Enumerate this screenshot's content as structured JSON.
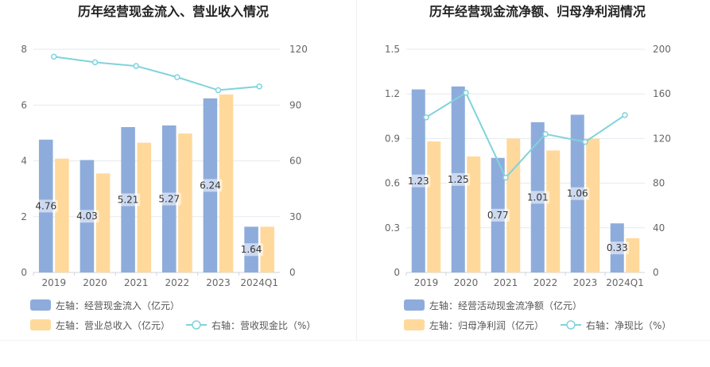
{
  "colors": {
    "bar_primary": "#8eacdb",
    "bar_secondary": "#ffd99b",
    "line": "#7fd3dc",
    "grid": "#e6e9f0",
    "axis_text": "#666666",
    "title_text": "#222222",
    "legend_text": "#555555"
  },
  "chart_data": [
    {
      "type": "bar",
      "title": "历年经营现金流入、营业收入情况",
      "categories": [
        "2019",
        "2020",
        "2021",
        "2022",
        "2023",
        "2024Q1"
      ],
      "left_axis": {
        "ylim": [
          0,
          8
        ],
        "ticks": [
          "0",
          "2",
          "4",
          "6",
          "8"
        ]
      },
      "right_axis": {
        "ylim": [
          0,
          120
        ],
        "ticks": [
          "0",
          "30",
          "60",
          "90",
          "120"
        ]
      },
      "series": [
        {
          "name": "左轴：经营现金流入（亿元）",
          "kind": "bar",
          "axis": "left",
          "values": [
            4.76,
            4.03,
            5.21,
            5.27,
            6.24,
            1.64
          ],
          "labels": [
            "4.76",
            "4.03",
            "5.21",
            "5.27",
            "6.24",
            "1.64"
          ]
        },
        {
          "name": "左轴：营业总收入（亿元）",
          "kind": "bar",
          "axis": "left",
          "values": [
            4.08,
            3.55,
            4.65,
            4.98,
            6.38,
            1.64
          ]
        },
        {
          "name": "右轴：营收现金比（%）",
          "kind": "line",
          "axis": "right",
          "values": [
            116,
            113,
            111,
            105,
            98,
            100
          ]
        }
      ]
    },
    {
      "type": "bar",
      "title": "历年经营现金流净额、归母净利润情况",
      "categories": [
        "2019",
        "2020",
        "2021",
        "2022",
        "2023",
        "2024Q1"
      ],
      "left_axis": {
        "ylim": [
          0,
          1.5
        ],
        "ticks": [
          "0",
          "0.3",
          "0.6",
          "0.9",
          "1.2",
          "1.5"
        ]
      },
      "right_axis": {
        "ylim": [
          0,
          200
        ],
        "ticks": [
          "0",
          "40",
          "80",
          "120",
          "160",
          "200"
        ]
      },
      "series": [
        {
          "name": "左轴：经营活动现金流净额（亿元）",
          "kind": "bar",
          "axis": "left",
          "values": [
            1.23,
            1.25,
            0.77,
            1.01,
            1.06,
            0.33
          ],
          "labels": [
            "1.23",
            "1.25",
            "0.77",
            "1.01",
            "1.06",
            "0.33"
          ]
        },
        {
          "name": "左轴：归母净利润（亿元）",
          "kind": "bar",
          "axis": "left",
          "values": [
            0.88,
            0.78,
            0.9,
            0.82,
            0.9,
            0.23
          ]
        },
        {
          "name": "右轴：净现比（%）",
          "kind": "line",
          "axis": "right",
          "values": [
            139,
            161,
            85,
            124,
            117,
            141
          ]
        }
      ]
    }
  ]
}
